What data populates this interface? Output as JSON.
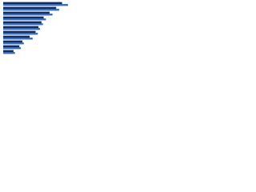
{
  "chart_data": {
    "type": "hbar",
    "categories": [
      null,
      null,
      null,
      null,
      null,
      null,
      null,
      null,
      null,
      null,
      null
    ],
    "series": [
      {
        "color": "#1b2a4a",
        "values": [
          80,
          72,
          63,
          55,
          52,
          48,
          44,
          36,
          26,
          22,
          14
        ]
      },
      {
        "color": "#2f6fd0",
        "values": [
          88,
          76,
          67,
          58,
          54,
          50,
          47,
          40,
          28,
          24,
          16
        ]
      }
    ],
    "xlim": [
      0,
      100
    ]
  }
}
